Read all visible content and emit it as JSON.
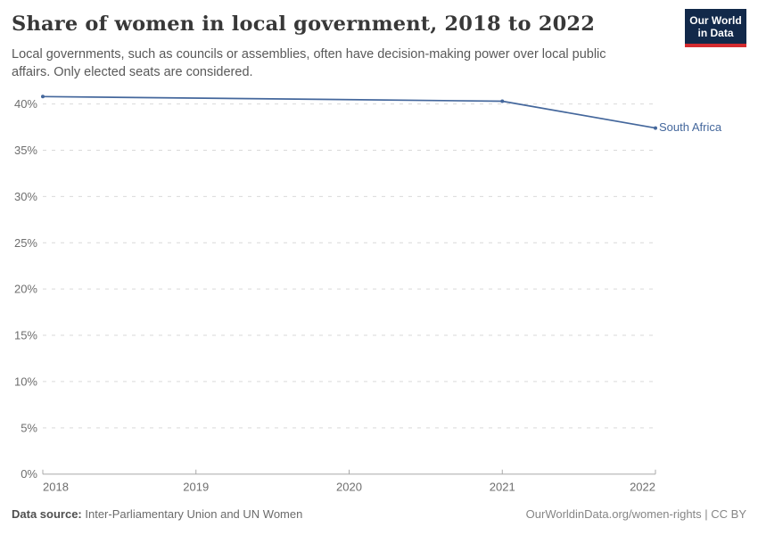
{
  "header": {
    "title": "Share of women in local government, 2018 to 2022",
    "subtitle": "Local governments, such as councils or assemblies, often have decision-making power over local public affairs. Only elected seats are considered.",
    "logo": {
      "line1": "Our World",
      "line2": "in Data",
      "bg_color": "#12294a",
      "accent_color": "#d42b2f"
    }
  },
  "chart_data": {
    "type": "line",
    "title": "Share of women in local government, 2018 to 2022",
    "x": [
      2018,
      2021,
      2022
    ],
    "series": [
      {
        "name": "South Africa",
        "values": [
          40.8,
          40.3,
          37.4
        ],
        "color": "#44679c"
      }
    ],
    "x_ticks": [
      2018,
      2019,
      2020,
      2021,
      2022
    ],
    "y_ticks": [
      0,
      5,
      10,
      15,
      20,
      25,
      30,
      35,
      40
    ],
    "y_tick_suffix": "%",
    "xlim": [
      2018,
      2022
    ],
    "ylim": [
      0,
      40
    ],
    "grid": "horizontal-dashed",
    "legend_position": "line-end-label",
    "colors": {
      "line": "#44679c",
      "grid": "#d9d9d9",
      "axis": "#a9a9a9",
      "tick_text": "#6e6e6e"
    }
  },
  "footer": {
    "source_label": "Data source:",
    "source_value": " Inter-Parliamentary Union and UN Women",
    "link": "OurWorldinData.org/women-rights | CC BY"
  }
}
